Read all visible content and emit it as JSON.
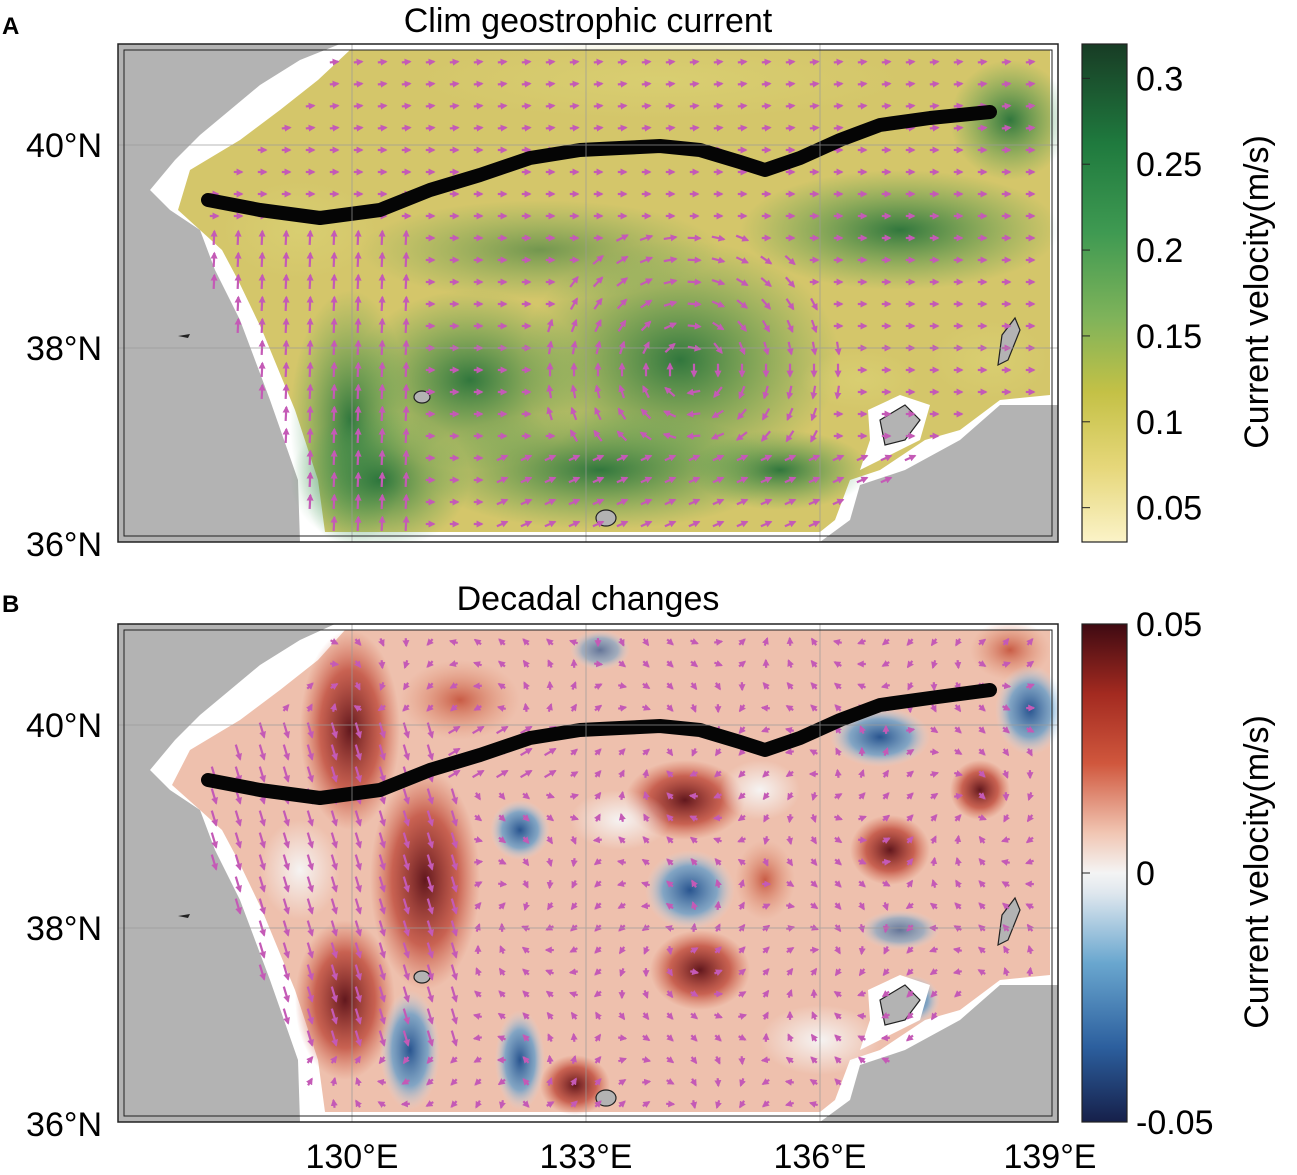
{
  "figure": {
    "panels": [
      {
        "letter": "A",
        "title": "Clim geostrophic current",
        "colorbar_label": "Current velocity(m/s)",
        "colorbar_ticks": [
          "0.3",
          "0.25",
          "0.2",
          "0.15",
          "0.1",
          "0.05"
        ],
        "colorbar_range": [
          0.03,
          0.32
        ],
        "colormap": [
          "#fbf3c8",
          "#e6d77a",
          "#c4c146",
          "#7fb35a",
          "#3f9a52",
          "#1f7a3e",
          "#183c25"
        ]
      },
      {
        "letter": "B",
        "title": "Decadal changes",
        "colorbar_label": "Current velocity(m/s)",
        "colorbar_ticks": [
          "0.05",
          "0",
          "-0.05"
        ],
        "colorbar_range": [
          -0.05,
          0.05
        ],
        "colormap": [
          "#16204a",
          "#2c5f9e",
          "#6aa7cf",
          "#dfe7ee",
          "#f4f4f4",
          "#f1c6b3",
          "#d0573d",
          "#a32a20",
          "#3f0a12"
        ]
      }
    ],
    "lat_ticks": [
      "40°N",
      "38°N",
      "36°N"
    ],
    "lon_ticks": [
      "130°E",
      "133°E",
      "136°E",
      "139°E"
    ],
    "colors": {
      "land": "#b3b3b3",
      "arrow": "#c45ab6",
      "front_line": "#050505"
    }
  }
}
